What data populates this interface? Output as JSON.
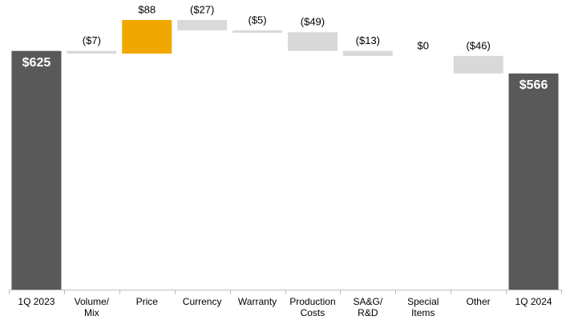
{
  "chart_data": {
    "type": "waterfall",
    "categories": [
      "1Q 2023",
      "Volume/\nMix",
      "Price",
      "Currency",
      "Warranty",
      "Production\nCosts",
      "SA&G/\nR&D",
      "Special\nItems",
      "Other",
      "1Q 2024"
    ],
    "values": [
      625,
      -7,
      88,
      -27,
      -5,
      -49,
      -13,
      0,
      -46,
      566
    ],
    "value_labels": [
      "$625",
      "($7)",
      "$88",
      "($27)",
      "($5)",
      "($49)",
      "($13)",
      "$0",
      "($46)",
      "$566"
    ],
    "colors": {
      "total": "#595959",
      "increase": "#f0a800",
      "decrease": "#d9d9d9"
    }
  }
}
